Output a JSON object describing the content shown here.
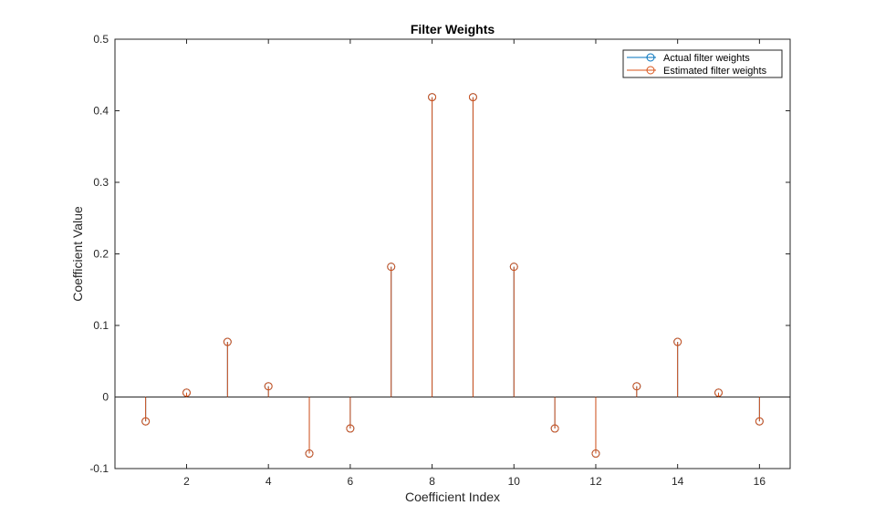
{
  "chart_data": {
    "type": "stem",
    "title": "Filter Weights",
    "xlabel": "Coefficient Index",
    "ylabel": "Coefficient Value",
    "xlim": [
      0.25,
      16.75
    ],
    "ylim": [
      -0.1,
      0.5
    ],
    "xticks": [
      2,
      4,
      6,
      8,
      10,
      12,
      14,
      16
    ],
    "yticks": [
      -0.1,
      0,
      0.1,
      0.2,
      0.3,
      0.4,
      0.5
    ],
    "ytick_labels": [
      "-0.1",
      "0",
      "0.1",
      "0.2",
      "0.3",
      "0.4",
      "0.5"
    ],
    "legend_position": "top-right",
    "grid": false,
    "x": [
      1,
      2,
      3,
      4,
      5,
      6,
      7,
      8,
      9,
      10,
      11,
      12,
      13,
      14,
      15,
      16
    ],
    "series": [
      {
        "name": "Actual filter weights",
        "color": "#0072BD",
        "values": [
          -0.034,
          0.006,
          0.077,
          0.015,
          -0.079,
          -0.044,
          0.182,
          0.419,
          0.419,
          0.182,
          -0.044,
          -0.079,
          0.015,
          0.077,
          0.006,
          -0.034
        ]
      },
      {
        "name": "Estimated filter weights",
        "color": "#D95319",
        "values": [
          -0.034,
          0.006,
          0.077,
          0.015,
          -0.079,
          -0.044,
          0.182,
          0.419,
          0.419,
          0.182,
          -0.044,
          -0.079,
          0.015,
          0.077,
          0.006,
          -0.034
        ]
      }
    ]
  }
}
